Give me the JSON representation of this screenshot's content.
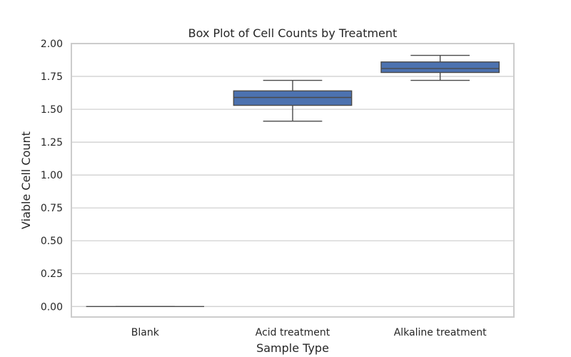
{
  "chart_data": {
    "type": "box",
    "title": "Box Plot of Cell Counts by Treatment",
    "xlabel": "Sample Type",
    "ylabel": "Viable Cell Count",
    "ylim": [
      -0.08,
      2.0
    ],
    "yticks": [
      "0.00",
      "0.25",
      "0.50",
      "0.75",
      "1.00",
      "1.25",
      "1.50",
      "1.75",
      "2.00"
    ],
    "categories": [
      "Blank",
      "Acid treatment",
      "Alkaline treatment"
    ],
    "grid": true,
    "box_color": "#4c72b0",
    "line_color": "#4a4a4a",
    "boxes": [
      {
        "category": "Blank",
        "min": 0.0,
        "q1": 0.0,
        "median": 0.0,
        "q3": 0.0,
        "max": 0.0
      },
      {
        "category": "Acid treatment",
        "min": 1.41,
        "q1": 1.53,
        "median": 1.59,
        "q3": 1.64,
        "max": 1.72
      },
      {
        "category": "Alkaline treatment",
        "min": 1.72,
        "q1": 1.78,
        "median": 1.81,
        "q3": 1.86,
        "max": 1.91
      }
    ]
  }
}
